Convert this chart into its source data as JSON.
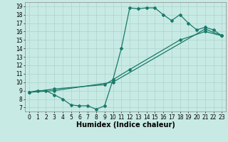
{
  "bg_color": "#c8eae4",
  "grid_color": "#aad4cc",
  "line_color": "#1a7a6a",
  "marker": "D",
  "markersize": 2,
  "linewidth": 0.9,
  "xlabel": "Humidex (Indice chaleur)",
  "xlabel_fontsize": 7,
  "tick_fontsize": 5.5,
  "xlim": [
    -0.5,
    23.5
  ],
  "ylim": [
    6.5,
    19.5
  ],
  "xticks": [
    0,
    1,
    2,
    3,
    4,
    5,
    6,
    7,
    8,
    9,
    10,
    11,
    12,
    13,
    14,
    15,
    16,
    17,
    18,
    19,
    20,
    21,
    22,
    23
  ],
  "yticks": [
    7,
    8,
    9,
    10,
    11,
    12,
    13,
    14,
    15,
    16,
    17,
    18,
    19
  ],
  "series": [
    {
      "x": [
        0,
        1,
        2,
        3,
        4,
        5,
        6,
        7,
        8,
        9,
        10,
        11,
        12,
        13,
        14,
        15,
        16,
        17,
        18,
        19,
        20,
        21,
        22,
        23
      ],
      "y": [
        8.8,
        9.0,
        9.0,
        8.5,
        8.0,
        7.3,
        7.2,
        7.2,
        6.8,
        7.2,
        10.3,
        14.0,
        18.8,
        18.7,
        18.8,
        18.8,
        18.0,
        17.3,
        18.0,
        17.0,
        16.2,
        16.5,
        16.2,
        15.5
      ]
    },
    {
      "x": [
        0,
        3,
        10,
        21,
        23
      ],
      "y": [
        8.8,
        9.0,
        10.0,
        16.3,
        15.5
      ]
    },
    {
      "x": [
        0,
        3,
        9,
        12,
        18,
        21,
        23
      ],
      "y": [
        8.8,
        9.2,
        9.7,
        11.5,
        15.0,
        16.0,
        15.5
      ]
    }
  ]
}
